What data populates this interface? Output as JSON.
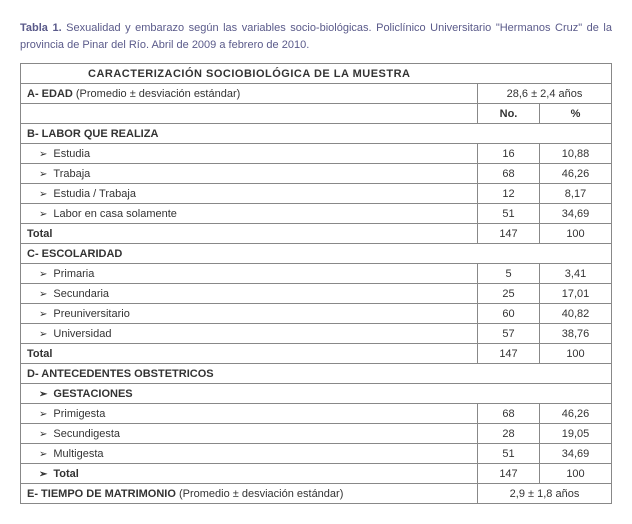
{
  "caption": {
    "bold": "Tabla 1.",
    "text": " Sexualidad y embarazo según las variables socio-biológicas. Policlínico Universitario \"Hermanos Cruz\" de la provincia de Pinar del Río. Abril de 2009 a febrero de 2010."
  },
  "table": {
    "main_header": "CARACTERIZACIÓN  SOCIOBIOLÓGICA  DE LA MUESTRA",
    "edad": {
      "label_prefix": "A-  EDAD ",
      "label_suffix": "(Promedio ± desviación estándar)",
      "value": "28,6  ±  2,4 años"
    },
    "col_headers": {
      "no": "No.",
      "pct": "%"
    },
    "labor": {
      "title": "B- LABOR QUE REALIZA",
      "rows": [
        {
          "label": "Estudia",
          "no": "16",
          "pct": "10,88"
        },
        {
          "label": "Trabaja",
          "no": "68",
          "pct": "46,26"
        },
        {
          "label": "Estudia / Trabaja",
          "no": "12",
          "pct": "8,17"
        },
        {
          "label": "Labor en casa solamente",
          "no": "51",
          "pct": "34,69"
        }
      ],
      "total": {
        "label": "Total",
        "no": "147",
        "pct": "100"
      }
    },
    "escolaridad": {
      "title": "C- ESCOLARIDAD",
      "rows": [
        {
          "label": "Primaria",
          "no": "5",
          "pct": "3,41"
        },
        {
          "label": "Secundaria",
          "no": "25",
          "pct": "17,01"
        },
        {
          "label": "Preuniversitario",
          "no": "60",
          "pct": "40,82"
        },
        {
          "label": "Universidad",
          "no": "57",
          "pct": "38,76"
        }
      ],
      "total": {
        "label": "Total",
        "no": "147",
        "pct": "100"
      }
    },
    "antecedentes": {
      "title": "D- ANTECEDENTES OBSTETRICOS",
      "sub": "GESTACIONES",
      "rows": [
        {
          "label": "Primigesta",
          "no": "68",
          "pct": "46,26"
        },
        {
          "label": "Secundigesta",
          "no": "28",
          "pct": "19,05"
        },
        {
          "label": "Multigesta",
          "no": "51",
          "pct": "34,69"
        }
      ],
      "total": {
        "label": "Total",
        "no": "147",
        "pct": "100"
      }
    },
    "matrimonio": {
      "label_prefix": "E- TIEMPO DE MATRIMONIO ",
      "label_suffix": "(Promedio ± desviación estándar)",
      "value": "2,9  ±  1,8 años"
    }
  }
}
